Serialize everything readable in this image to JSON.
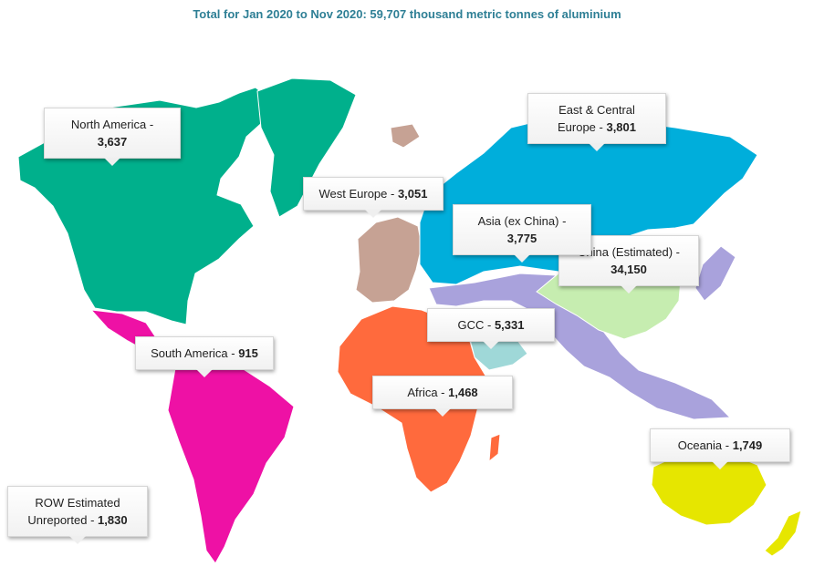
{
  "title": "Total for Jan 2020 to Nov 2020: 59,707 thousand metric tonnes of aluminium",
  "regions": [
    {
      "key": "north_america",
      "line1": "North America -",
      "line2_pre": "",
      "value": "3,637",
      "color": "#00b08c"
    },
    {
      "key": "east_central_europe",
      "line1": "East & Central",
      "line2_pre": "Europe - ",
      "value": "3,801",
      "color": "#00aedb"
    },
    {
      "key": "west_europe",
      "line1": "",
      "line2_pre": "West Europe - ",
      "value": "3,051",
      "color": "#c6a294"
    },
    {
      "key": "asia_ex_china",
      "line1": "Asia (ex China) -",
      "line2_pre": "",
      "value": "3,775",
      "color": "#a9a2dc"
    },
    {
      "key": "china",
      "line1": "China (Estimated) -",
      "line2_pre": "",
      "value": "34,150",
      "color": "#c6edb0"
    },
    {
      "key": "gcc",
      "line1": "",
      "line2_pre": "GCC - ",
      "value": "5,331",
      "color": "#9fd8d8"
    },
    {
      "key": "south_america",
      "line1": "",
      "line2_pre": "South America - ",
      "value": "915",
      "color": "#ee11a5"
    },
    {
      "key": "africa",
      "line1": "",
      "line2_pre": "Africa - ",
      "value": "1,468",
      "color": "#ff6a3d"
    },
    {
      "key": "oceania",
      "line1": "",
      "line2_pre": "Oceania - ",
      "value": "1,749",
      "color": "#e6e600"
    },
    {
      "key": "row",
      "line1": "ROW Estimated",
      "line2_pre": "Unreported - ",
      "value": "1,830",
      "color": ""
    }
  ],
  "extra_colors": {
    "central_america": "#ee11a5",
    "greenland": "#00b08c",
    "russia": "#00aedb"
  }
}
